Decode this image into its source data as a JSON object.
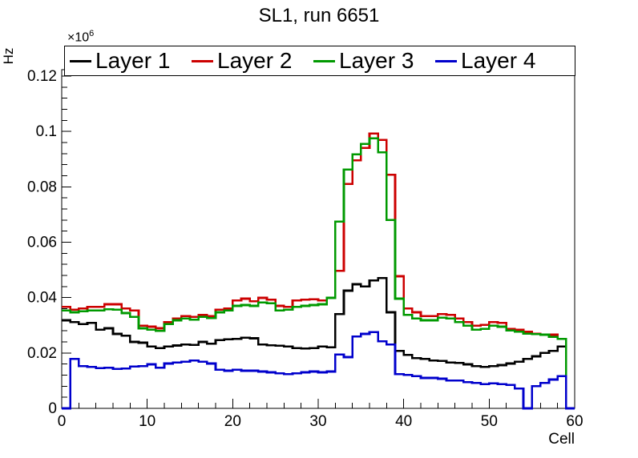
{
  "title": "SL1, run 6651",
  "axes": {
    "x_label": "Cell",
    "y_label": "Hz",
    "y_multiplier_base": "×10",
    "y_multiplier_exp": "6",
    "x_tick_labels": [
      "0",
      "10",
      "20",
      "30",
      "40",
      "50",
      "60"
    ],
    "y_tick_labels": [
      "0",
      "0.02",
      "0.04",
      "0.06",
      "0.08",
      "0.1",
      "0.12"
    ]
  },
  "legend": {
    "entries": [
      {
        "label": "Layer 1",
        "color": "#000000"
      },
      {
        "label": "Layer 2",
        "color": "#cc0000"
      },
      {
        "label": "Layer 3",
        "color": "#009900"
      },
      {
        "label": "Layer 4",
        "color": "#0000cc"
      }
    ]
  },
  "chart_data": {
    "type": "line",
    "style": "step-histogram",
    "title": "SL1, run 6651",
    "xlabel": "Cell",
    "ylabel": "Hz",
    "y_units_displayed": "×10^6 Hz",
    "xlim": [
      0,
      60
    ],
    "ylim": [
      0,
      0.1223
    ],
    "xticks": [
      0,
      10,
      20,
      30,
      40,
      50,
      60
    ],
    "x_minor_step": 2,
    "yticks": [
      0,
      0.02,
      0.04,
      0.06,
      0.08,
      0.1,
      0.12
    ],
    "y_minor_step": 0.004,
    "grid": false,
    "legend_position": "top",
    "bins": 60,
    "bin_note": "values are per-cell rates in units of 1e6 Hz, cells 0-59",
    "series": [
      {
        "name": "Layer 1",
        "color": "#000000",
        "values": [
          0.0318,
          0.0311,
          0.0304,
          0.0309,
          0.0284,
          0.0289,
          0.0269,
          0.0262,
          0.024,
          0.0237,
          0.0223,
          0.0217,
          0.0223,
          0.0227,
          0.0231,
          0.0229,
          0.024,
          0.0234,
          0.0246,
          0.0249,
          0.0251,
          0.0255,
          0.0253,
          0.0231,
          0.0228,
          0.0226,
          0.0223,
          0.0217,
          0.0216,
          0.0217,
          0.0223,
          0.0221,
          0.0341,
          0.0425,
          0.0448,
          0.044,
          0.0462,
          0.0471,
          0.0347,
          0.0208,
          0.0193,
          0.0182,
          0.0179,
          0.0173,
          0.0171,
          0.0165,
          0.0164,
          0.0159,
          0.0153,
          0.015,
          0.0153,
          0.0156,
          0.0162,
          0.0168,
          0.0179,
          0.0188,
          0.02,
          0.0208,
          0.0223,
          0.0
        ]
      },
      {
        "name": "Layer 2",
        "color": "#cc0000",
        "values": [
          0.0367,
          0.0356,
          0.0361,
          0.0367,
          0.0367,
          0.0376,
          0.0376,
          0.0361,
          0.0353,
          0.0298,
          0.0295,
          0.0289,
          0.0312,
          0.0324,
          0.0333,
          0.033,
          0.0338,
          0.0333,
          0.0356,
          0.0361,
          0.039,
          0.0396,
          0.0387,
          0.0399,
          0.0393,
          0.037,
          0.0367,
          0.039,
          0.0393,
          0.0394,
          0.039,
          0.0399,
          0.0497,
          0.081,
          0.0896,
          0.094,
          0.0993,
          0.0969,
          0.0844,
          0.0477,
          0.0361,
          0.0347,
          0.0333,
          0.0333,
          0.0341,
          0.0338,
          0.0324,
          0.0312,
          0.0298,
          0.0301,
          0.0312,
          0.0309,
          0.0287,
          0.0284,
          0.0277,
          0.027,
          0.0266,
          0.0266,
          0.0251,
          0.0
        ]
      },
      {
        "name": "Layer 3",
        "color": "#009900",
        "values": [
          0.0353,
          0.0347,
          0.035,
          0.0353,
          0.0353,
          0.0358,
          0.0356,
          0.0344,
          0.033,
          0.0289,
          0.0284,
          0.028,
          0.0304,
          0.0318,
          0.0324,
          0.032,
          0.033,
          0.0326,
          0.0347,
          0.0353,
          0.037,
          0.0373,
          0.037,
          0.0382,
          0.0379,
          0.0353,
          0.0356,
          0.0367,
          0.037,
          0.0373,
          0.0376,
          0.0399,
          0.0674,
          0.0862,
          0.0917,
          0.0955,
          0.0975,
          0.0925,
          0.068,
          0.0396,
          0.0338,
          0.0324,
          0.0318,
          0.0318,
          0.0327,
          0.0324,
          0.0312,
          0.0298,
          0.0284,
          0.0287,
          0.0298,
          0.0295,
          0.0281,
          0.0277,
          0.027,
          0.0268,
          0.0266,
          0.0258,
          0.0251,
          0.0
        ]
      },
      {
        "name": "Layer 4",
        "color": "#0000cc",
        "values": [
          0.0,
          0.0179,
          0.0153,
          0.015,
          0.0145,
          0.0147,
          0.0142,
          0.0144,
          0.0151,
          0.0153,
          0.0159,
          0.0147,
          0.0162,
          0.0165,
          0.0168,
          0.0173,
          0.0168,
          0.0162,
          0.0139,
          0.0136,
          0.0139,
          0.0136,
          0.0136,
          0.0133,
          0.013,
          0.0127,
          0.0124,
          0.0127,
          0.013,
          0.0133,
          0.013,
          0.0133,
          0.0194,
          0.0185,
          0.026,
          0.0269,
          0.0275,
          0.0242,
          0.0231,
          0.0124,
          0.0121,
          0.0116,
          0.011,
          0.011,
          0.0107,
          0.0101,
          0.0101,
          0.0095,
          0.0092,
          0.0087,
          0.009,
          0.0087,
          0.0084,
          0.0072,
          0.0,
          0.008,
          0.0092,
          0.0104,
          0.0116,
          0.0
        ]
      }
    ]
  }
}
